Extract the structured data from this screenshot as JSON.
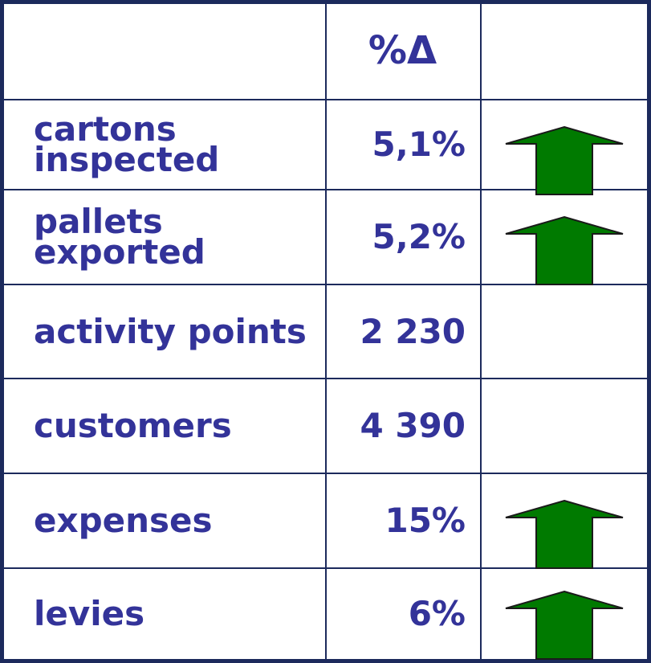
{
  "table": {
    "header": {
      "change": "%Δ"
    },
    "rows": [
      {
        "label": "cartons inspected",
        "value": "5,1%"
      },
      {
        "label": "pallets exported",
        "value": "5,2%"
      },
      {
        "label": "activity points",
        "value": "2 230"
      },
      {
        "label": "customers",
        "value": "4 390"
      },
      {
        "label": "expenses",
        "value": "15%"
      },
      {
        "label": "levies",
        "value": "6%"
      }
    ]
  }
}
